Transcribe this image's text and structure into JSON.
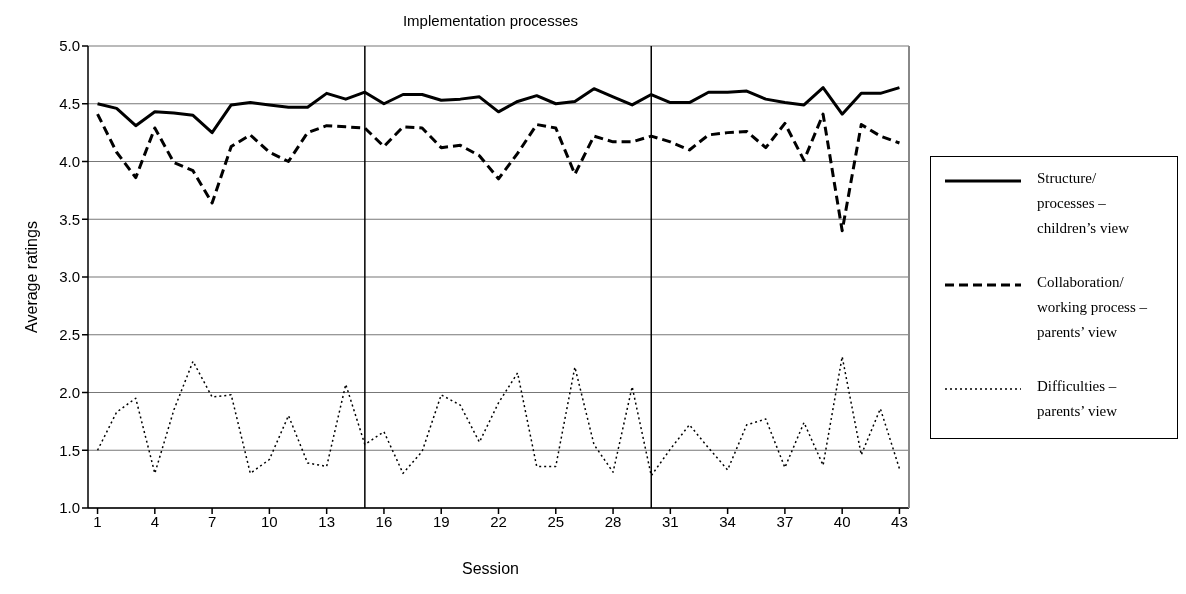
{
  "chart_data": {
    "type": "line",
    "title": "Implementation processes",
    "xlabel": "Session",
    "ylabel": "Average ratings",
    "x": [
      1,
      2,
      3,
      4,
      5,
      6,
      7,
      8,
      9,
      10,
      11,
      12,
      13,
      14,
      15,
      16,
      17,
      18,
      19,
      20,
      21,
      22,
      23,
      24,
      25,
      26,
      27,
      28,
      29,
      30,
      31,
      32,
      33,
      34,
      35,
      36,
      37,
      38,
      39,
      40,
      41,
      42,
      43
    ],
    "xlim": [
      0.5,
      43.5
    ],
    "xticks": [
      1,
      4,
      7,
      10,
      13,
      16,
      19,
      22,
      25,
      28,
      31,
      34,
      37,
      40,
      43
    ],
    "ylim": [
      1,
      5
    ],
    "yticks": [
      {
        "value": 1,
        "label": "1.0"
      },
      1.5,
      {
        "value": 2,
        "label": "2.0"
      },
      2.5,
      {
        "value": 3,
        "label": "3.0"
      },
      3.5,
      {
        "value": 4,
        "label": "4.0"
      },
      4.5,
      {
        "value": 5,
        "label": "5.0"
      }
    ],
    "grid": "y",
    "legend": "right",
    "marker": "none",
    "ref_lines": [
      {
        "axis": "x",
        "value": 15,
        "color": "#000000"
      },
      {
        "axis": "x",
        "value": 30,
        "color": "#000000"
      }
    ],
    "series": [
      {
        "name": "Structure/ processes – children’s view",
        "color": "#000000",
        "line_style": "solid",
        "values": [
          4.5,
          4.46,
          4.31,
          4.43,
          4.42,
          4.4,
          4.25,
          4.49,
          4.51,
          4.49,
          4.47,
          4.47,
          4.59,
          4.54,
          4.6,
          4.5,
          4.58,
          4.58,
          4.53,
          4.54,
          4.56,
          4.43,
          4.52,
          4.57,
          4.5,
          4.52,
          4.63,
          4.56,
          4.49,
          4.58,
          4.51,
          4.51,
          4.6,
          4.6,
          4.61,
          4.54,
          4.51,
          4.49,
          4.64,
          4.41,
          4.59,
          4.59,
          4.64
        ]
      },
      {
        "name": "Collaboration/ working process – parents’ view",
        "color": "#000000",
        "line_style": "dashed",
        "values": [
          4.41,
          4.08,
          3.86,
          4.29,
          3.99,
          3.92,
          3.64,
          4.13,
          4.23,
          4.08,
          4.0,
          4.25,
          4.31,
          4.3,
          4.29,
          4.13,
          4.3,
          4.29,
          4.12,
          4.14,
          4.05,
          3.85,
          4.07,
          4.32,
          4.29,
          3.89,
          4.22,
          4.17,
          4.17,
          4.22,
          4.17,
          4.1,
          4.23,
          4.25,
          4.26,
          4.12,
          4.33,
          4.01,
          4.41,
          3.4,
          4.32,
          4.22,
          4.16
        ]
      },
      {
        "name": "Difficulties – parents’ view",
        "color": "#000000",
        "line_style": "dotted",
        "values": [
          1.5,
          1.83,
          1.95,
          1.3,
          1.85,
          2.27,
          1.96,
          1.98,
          1.3,
          1.42,
          1.8,
          1.39,
          1.36,
          2.07,
          1.55,
          1.66,
          1.3,
          1.49,
          1.98,
          1.89,
          1.57,
          1.91,
          2.17,
          1.36,
          1.36,
          2.22,
          1.55,
          1.31,
          2.05,
          1.28,
          1.51,
          1.72,
          1.52,
          1.33,
          1.72,
          1.77,
          1.35,
          1.74,
          1.37,
          2.31,
          1.46,
          1.86,
          1.34
        ]
      }
    ]
  }
}
